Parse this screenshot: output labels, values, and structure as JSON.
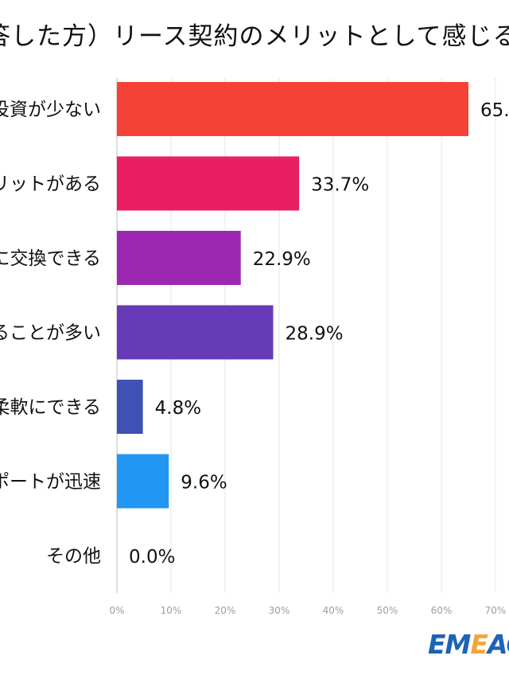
{
  "chart_data": {
    "type": "bar",
    "orientation": "horizontal",
    "title": "答した方）リース契約のメリットとして感じる",
    "categories": [
      "投資が少ない",
      "リットがある",
      "に交換できる",
      "ることが多い",
      "柔軟にできる",
      "ポートが迅速",
      "その他"
    ],
    "values": [
      65,
      33.7,
      22.9,
      28.9,
      4.8,
      9.6,
      0.0
    ],
    "value_labels": [
      "65.",
      "33.7%",
      "22.9%",
      "28.9%",
      "4.8%",
      "9.6%",
      "0.0%"
    ],
    "colors": [
      "#f44336",
      "#e91e63",
      "#9c27b0",
      "#673ab7",
      "#3f51b5",
      "#2196f3",
      "#03a9f4"
    ],
    "x_ticks": [
      "0%",
      "10%",
      "20%",
      "30%",
      "40%",
      "50%",
      "60%",
      "70%"
    ],
    "xlim": [
      0,
      70
    ],
    "grid": true
  },
  "brand": {
    "logo_text": "EMEAO"
  }
}
